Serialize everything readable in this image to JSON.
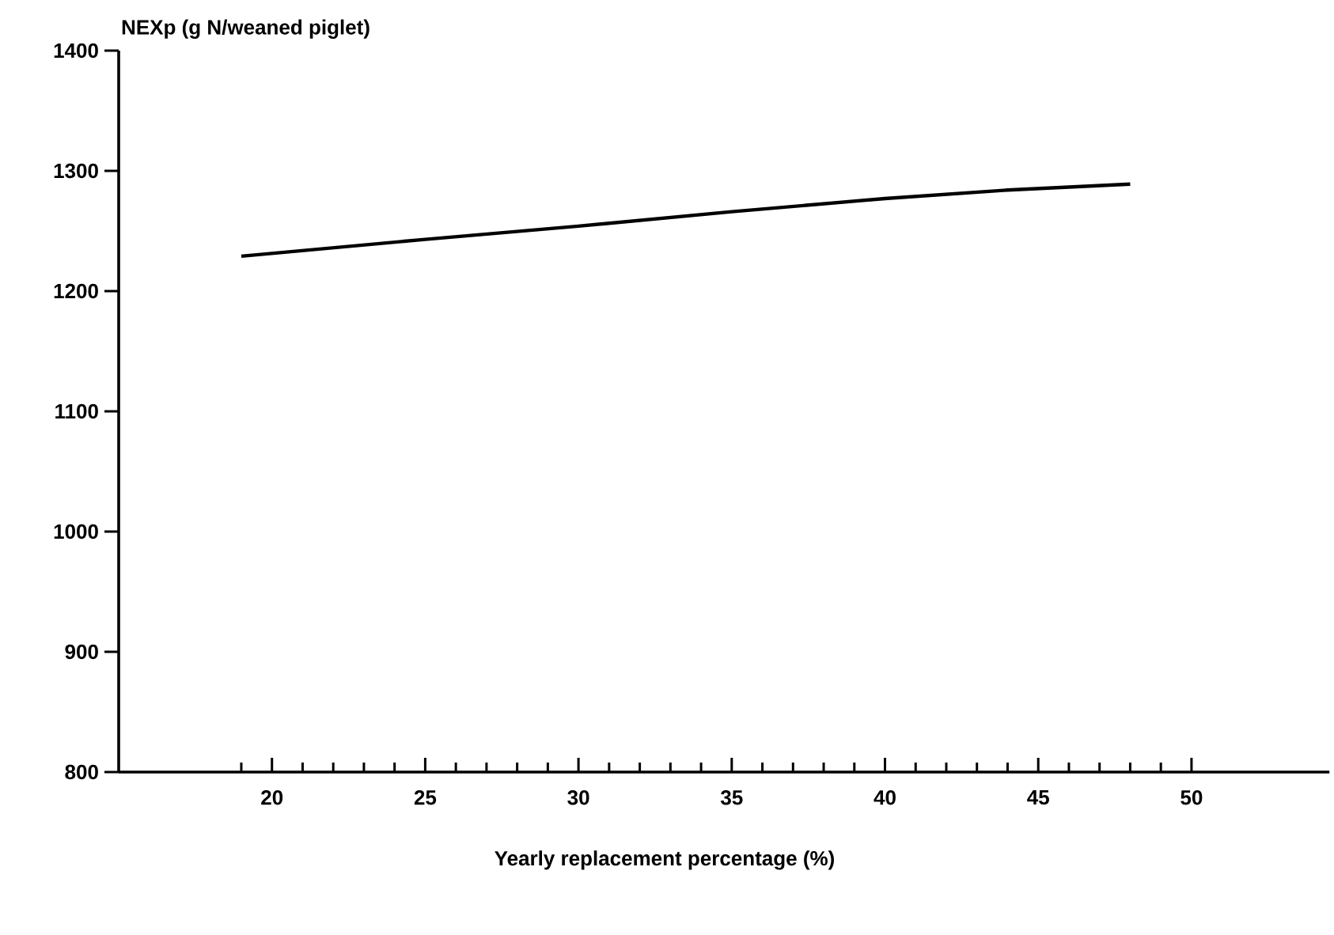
{
  "chart_data": {
    "type": "line",
    "xlabel": "Yearly replacement percentage (%)",
    "ylabel": "NEXp (g N/weaned piglet)",
    "x": [
      19,
      25,
      30,
      35,
      40,
      44,
      48
    ],
    "series": [
      {
        "color": "#000000",
        "values": [
          1229,
          1243,
          1254,
          1266,
          1277,
          1284,
          1289
        ]
      }
    ],
    "xlim": [
      15,
      54.5
    ],
    "ylim": [
      800,
      1400
    ],
    "xticks": [
      {
        "value": 19,
        "label": null
      },
      20,
      {
        "value": 21,
        "label": null
      },
      {
        "value": 22,
        "label": null
      },
      {
        "value": 23,
        "label": null
      },
      {
        "value": 24,
        "label": null
      },
      25,
      {
        "value": 26,
        "label": null
      },
      {
        "value": 27,
        "label": null
      },
      {
        "value": 28,
        "label": null
      },
      {
        "value": 29,
        "label": null
      },
      30,
      {
        "value": 31,
        "label": null
      },
      {
        "value": 32,
        "label": null
      },
      {
        "value": 33,
        "label": null
      },
      {
        "value": 34,
        "label": null
      },
      35,
      {
        "value": 36,
        "label": null
      },
      {
        "value": 37,
        "label": null
      },
      {
        "value": 38,
        "label": null
      },
      {
        "value": 39,
        "label": null
      },
      40,
      {
        "value": 41,
        "label": null
      },
      {
        "value": 42,
        "label": null
      },
      {
        "value": 43,
        "label": null
      },
      {
        "value": 44,
        "label": null
      },
      45,
      {
        "value": 46,
        "label": null
      },
      {
        "value": 47,
        "label": null
      },
      {
        "value": 48,
        "label": null
      },
      {
        "value": 49,
        "label": null
      },
      50
    ],
    "yticks": [
      800,
      900,
      1000,
      1100,
      1200,
      1300,
      1400
    ],
    "marker": "none",
    "line_style": "solid"
  }
}
